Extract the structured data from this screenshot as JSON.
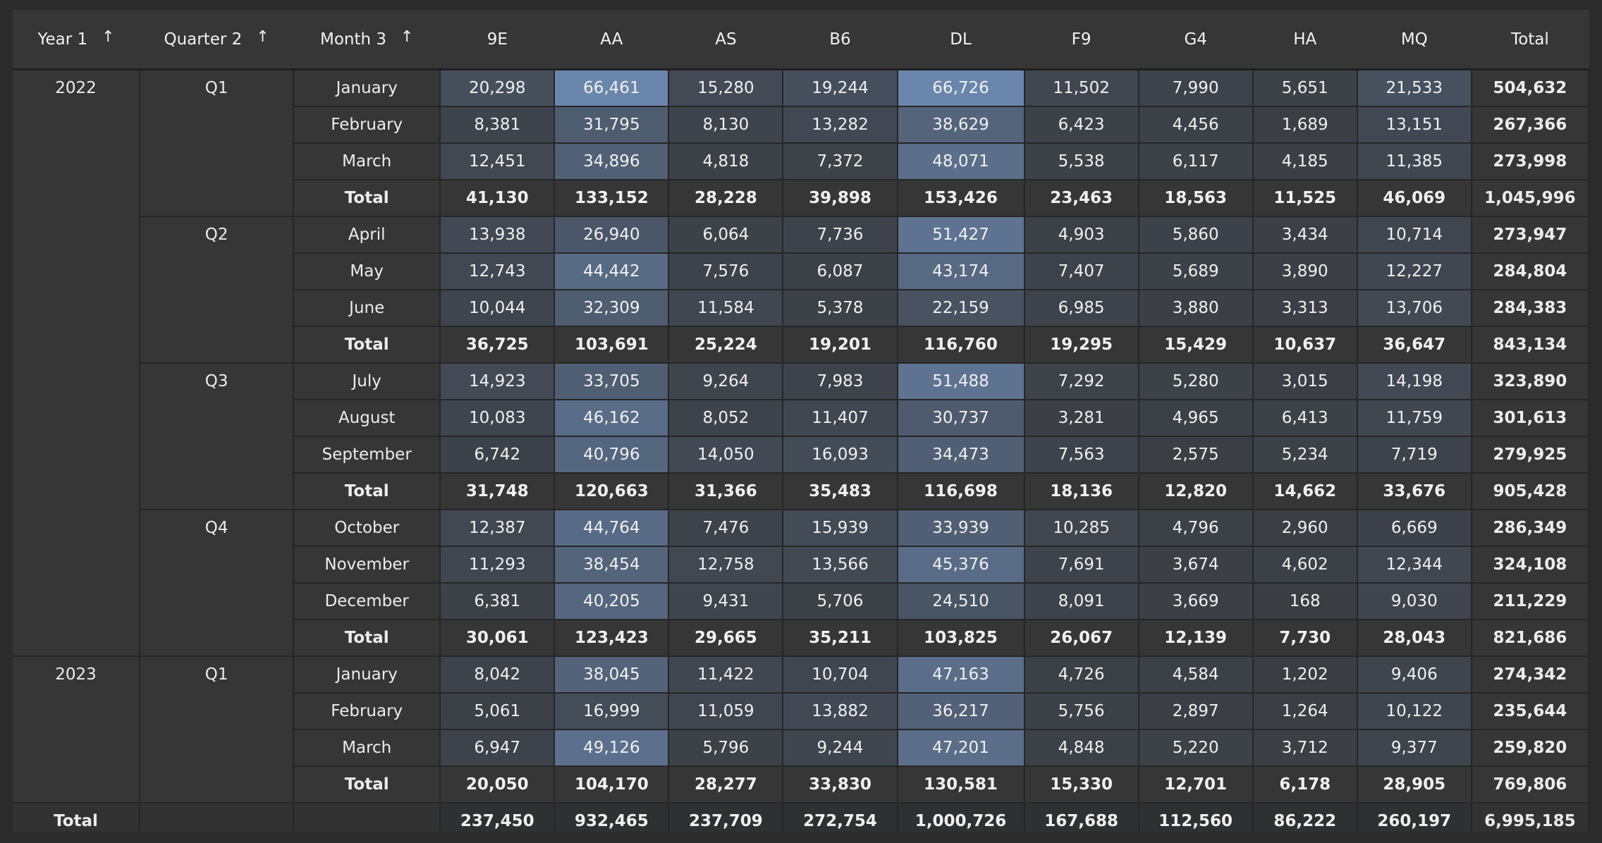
{
  "headers": {
    "year": "Year 1",
    "quarter": "Quarter 2",
    "month": "Month 3",
    "sort_glyph": "↑",
    "carriers": [
      "9E",
      "AA",
      "AS",
      "B6",
      "DL",
      "F9",
      "G4",
      "HA",
      "MQ"
    ],
    "total": "Total"
  },
  "colors": {
    "page_bg": "#2b2b2b",
    "table_bg": "#363636",
    "heat_low": "#3a3d42",
    "heat_high": "#6a86ad",
    "grid": "#262626"
  },
  "groups": [
    {
      "year": "2022",
      "quarters": [
        {
          "quarter": "Q1",
          "rows": [
            {
              "month": "January",
              "values": [
                "20,298",
                "66,461",
                "15,280",
                "19,244",
                "66,726",
                "11,502",
                "7,990",
                "5,651",
                "21,533"
              ],
              "total": "504,632"
            },
            {
              "month": "February",
              "values": [
                "8,381",
                "31,795",
                "8,130",
                "13,282",
                "38,629",
                "6,423",
                "4,456",
                "1,689",
                "13,151"
              ],
              "total": "267,366"
            },
            {
              "month": "March",
              "values": [
                "12,451",
                "34,896",
                "4,818",
                "7,372",
                "48,071",
                "5,538",
                "6,117",
                "4,185",
                "11,385"
              ],
              "total": "273,998"
            }
          ],
          "subtotal": {
            "label": "Total",
            "values": [
              "41,130",
              "133,152",
              "28,228",
              "39,898",
              "153,426",
              "23,463",
              "18,563",
              "11,525",
              "46,069"
            ],
            "total": "1,045,996"
          }
        },
        {
          "quarter": "Q2",
          "rows": [
            {
              "month": "April",
              "values": [
                "13,938",
                "26,940",
                "6,064",
                "7,736",
                "51,427",
                "4,903",
                "5,860",
                "3,434",
                "10,714"
              ],
              "total": "273,947"
            },
            {
              "month": "May",
              "values": [
                "12,743",
                "44,442",
                "7,576",
                "6,087",
                "43,174",
                "7,407",
                "5,689",
                "3,890",
                "12,227"
              ],
              "total": "284,804"
            },
            {
              "month": "June",
              "values": [
                "10,044",
                "32,309",
                "11,584",
                "5,378",
                "22,159",
                "6,985",
                "3,880",
                "3,313",
                "13,706"
              ],
              "total": "284,383"
            }
          ],
          "subtotal": {
            "label": "Total",
            "values": [
              "36,725",
              "103,691",
              "25,224",
              "19,201",
              "116,760",
              "19,295",
              "15,429",
              "10,637",
              "36,647"
            ],
            "total": "843,134"
          }
        },
        {
          "quarter": "Q3",
          "rows": [
            {
              "month": "July",
              "values": [
                "14,923",
                "33,705",
                "9,264",
                "7,983",
                "51,488",
                "7,292",
                "5,280",
                "3,015",
                "14,198"
              ],
              "total": "323,890"
            },
            {
              "month": "August",
              "values": [
                "10,083",
                "46,162",
                "8,052",
                "11,407",
                "30,737",
                "3,281",
                "4,965",
                "6,413",
                "11,759"
              ],
              "total": "301,613"
            },
            {
              "month": "September",
              "values": [
                "6,742",
                "40,796",
                "14,050",
                "16,093",
                "34,473",
                "7,563",
                "2,575",
                "5,234",
                "7,719"
              ],
              "total": "279,925"
            }
          ],
          "subtotal": {
            "label": "Total",
            "values": [
              "31,748",
              "120,663",
              "31,366",
              "35,483",
              "116,698",
              "18,136",
              "12,820",
              "14,662",
              "33,676"
            ],
            "total": "905,428"
          }
        },
        {
          "quarter": "Q4",
          "rows": [
            {
              "month": "October",
              "values": [
                "12,387",
                "44,764",
                "7,476",
                "15,939",
                "33,939",
                "10,285",
                "4,796",
                "2,960",
                "6,669"
              ],
              "total": "286,349"
            },
            {
              "month": "November",
              "values": [
                "11,293",
                "38,454",
                "12,758",
                "13,566",
                "45,376",
                "7,691",
                "3,674",
                "4,602",
                "12,344"
              ],
              "total": "324,108"
            },
            {
              "month": "December",
              "values": [
                "6,381",
                "40,205",
                "9,431",
                "5,706",
                "24,510",
                "8,091",
                "3,669",
                "168",
                "9,030"
              ],
              "total": "211,229"
            }
          ],
          "subtotal": {
            "label": "Total",
            "values": [
              "30,061",
              "123,423",
              "29,665",
              "35,211",
              "103,825",
              "26,067",
              "12,139",
              "7,730",
              "28,043"
            ],
            "total": "821,686"
          }
        }
      ]
    },
    {
      "year": "2023",
      "quarters": [
        {
          "quarter": "Q1",
          "rows": [
            {
              "month": "January",
              "values": [
                "8,042",
                "38,045",
                "11,422",
                "10,704",
                "47,163",
                "4,726",
                "4,584",
                "1,202",
                "9,406"
              ],
              "total": "274,342"
            },
            {
              "month": "February",
              "values": [
                "5,061",
                "16,999",
                "11,059",
                "13,882",
                "36,217",
                "5,756",
                "2,897",
                "1,264",
                "10,122"
              ],
              "total": "235,644"
            },
            {
              "month": "March",
              "values": [
                "6,947",
                "49,126",
                "5,796",
                "9,244",
                "47,201",
                "4,848",
                "5,220",
                "3,712",
                "9,377"
              ],
              "total": "259,820"
            }
          ],
          "subtotal": {
            "label": "Total",
            "values": [
              "20,050",
              "104,170",
              "28,277",
              "33,830",
              "130,581",
              "15,330",
              "12,701",
              "6,178",
              "28,905"
            ],
            "total": "769,806"
          }
        }
      ]
    }
  ],
  "grand_total": {
    "label": "Total",
    "values": [
      "237,450",
      "932,465",
      "237,709",
      "272,754",
      "1,000,726",
      "167,688",
      "112,560",
      "86,222",
      "260,197"
    ],
    "total": "6,995,185"
  }
}
